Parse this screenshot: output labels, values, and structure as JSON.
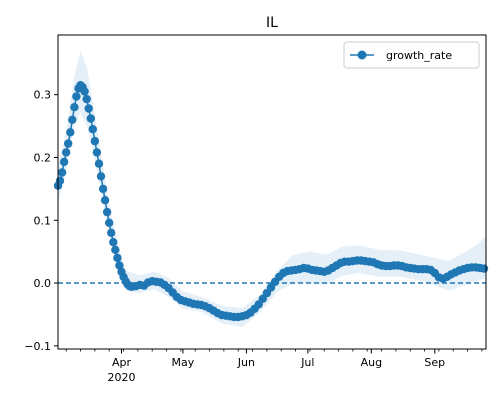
{
  "chart_data": {
    "type": "line",
    "title": "IL",
    "xlabel": "",
    "ylabel": "",
    "x_tick_labels": [
      "Apr",
      "May",
      "Jun",
      "Jul",
      "Aug",
      "Sep"
    ],
    "x_tick_dates": [
      "2020-04-01",
      "2020-05-01",
      "2020-06-01",
      "2020-07-01",
      "2020-08-01",
      "2020-09-01"
    ],
    "x_year_label": "2020",
    "xlim": [
      "2020-03-01",
      "2020-09-26"
    ],
    "y_ticks": [
      -0.1,
      0.0,
      0.1,
      0.2,
      0.3
    ],
    "y_tick_labels": [
      "−0.1",
      "0.0",
      "0.1",
      "0.2",
      "0.3"
    ],
    "ylim": [
      -0.105,
      0.395
    ],
    "legend": {
      "position": "top-right",
      "entries": [
        "growth_rate"
      ]
    },
    "reference_line": {
      "y": 0.0,
      "style": "dashed",
      "color": "#1f77b4"
    },
    "series_color": "#1f77b4",
    "band_color": "#cfe2f3",
    "grid": false,
    "series": [
      {
        "name": "growth_rate",
        "points": [
          [
            "2020-03-01",
            0.155
          ],
          [
            "2020-03-02",
            0.163
          ],
          [
            "2020-03-03",
            0.176
          ],
          [
            "2020-03-04",
            0.193
          ],
          [
            "2020-03-05",
            0.208
          ],
          [
            "2020-03-06",
            0.222
          ],
          [
            "2020-03-07",
            0.24
          ],
          [
            "2020-03-08",
            0.26
          ],
          [
            "2020-03-09",
            0.28
          ],
          [
            "2020-03-10",
            0.297
          ],
          [
            "2020-03-11",
            0.31
          ],
          [
            "2020-03-12",
            0.315
          ],
          [
            "2020-03-13",
            0.312
          ],
          [
            "2020-03-14",
            0.305
          ],
          [
            "2020-03-15",
            0.293
          ],
          [
            "2020-03-16",
            0.278
          ],
          [
            "2020-03-17",
            0.262
          ],
          [
            "2020-03-18",
            0.245
          ],
          [
            "2020-03-19",
            0.226
          ],
          [
            "2020-03-20",
            0.208
          ],
          [
            "2020-03-21",
            0.19
          ],
          [
            "2020-03-22",
            0.17
          ],
          [
            "2020-03-23",
            0.15
          ],
          [
            "2020-03-24",
            0.132
          ],
          [
            "2020-03-25",
            0.113
          ],
          [
            "2020-03-26",
            0.096
          ],
          [
            "2020-03-27",
            0.08
          ],
          [
            "2020-03-28",
            0.065
          ],
          [
            "2020-03-29",
            0.053
          ],
          [
            "2020-03-30",
            0.04
          ],
          [
            "2020-03-31",
            0.028
          ],
          [
            "2020-04-01",
            0.018
          ],
          [
            "2020-04-02",
            0.01
          ],
          [
            "2020-04-03",
            0.003
          ],
          [
            "2020-04-04",
            -0.002
          ],
          [
            "2020-04-05",
            -0.005
          ],
          [
            "2020-04-06",
            -0.006
          ],
          [
            "2020-04-08",
            -0.005
          ],
          [
            "2020-04-10",
            -0.003
          ],
          [
            "2020-04-12",
            -0.004
          ],
          [
            "2020-04-14",
            0.001
          ],
          [
            "2020-04-16",
            0.003
          ],
          [
            "2020-04-18",
            0.002
          ],
          [
            "2020-04-20",
            0.001
          ],
          [
            "2020-04-22",
            -0.003
          ],
          [
            "2020-04-24",
            -0.008
          ],
          [
            "2020-04-26",
            -0.015
          ],
          [
            "2020-04-28",
            -0.022
          ],
          [
            "2020-04-30",
            -0.027
          ],
          [
            "2020-05-02",
            -0.029
          ],
          [
            "2020-05-04",
            -0.031
          ],
          [
            "2020-05-06",
            -0.033
          ],
          [
            "2020-05-08",
            -0.034
          ],
          [
            "2020-05-10",
            -0.035
          ],
          [
            "2020-05-12",
            -0.037
          ],
          [
            "2020-05-14",
            -0.04
          ],
          [
            "2020-05-16",
            -0.044
          ],
          [
            "2020-05-18",
            -0.048
          ],
          [
            "2020-05-20",
            -0.051
          ],
          [
            "2020-05-22",
            -0.052
          ],
          [
            "2020-05-24",
            -0.053
          ],
          [
            "2020-05-26",
            -0.054
          ],
          [
            "2020-05-28",
            -0.054
          ],
          [
            "2020-05-30",
            -0.053
          ],
          [
            "2020-06-01",
            -0.051
          ],
          [
            "2020-06-03",
            -0.047
          ],
          [
            "2020-06-05",
            -0.041
          ],
          [
            "2020-06-07",
            -0.034
          ],
          [
            "2020-06-09",
            -0.025
          ],
          [
            "2020-06-11",
            -0.016
          ],
          [
            "2020-06-13",
            -0.007
          ],
          [
            "2020-06-15",
            0.002
          ],
          [
            "2020-06-17",
            0.01
          ],
          [
            "2020-06-19",
            0.016
          ],
          [
            "2020-06-21",
            0.019
          ],
          [
            "2020-06-23",
            0.02
          ],
          [
            "2020-06-25",
            0.021
          ],
          [
            "2020-06-27",
            0.022
          ],
          [
            "2020-06-29",
            0.024
          ],
          [
            "2020-07-01",
            0.023
          ],
          [
            "2020-07-03",
            0.021
          ],
          [
            "2020-07-05",
            0.02
          ],
          [
            "2020-07-07",
            0.019
          ],
          [
            "2020-07-09",
            0.018
          ],
          [
            "2020-07-11",
            0.02
          ],
          [
            "2020-07-13",
            0.024
          ],
          [
            "2020-07-15",
            0.028
          ],
          [
            "2020-07-17",
            0.032
          ],
          [
            "2020-07-19",
            0.034
          ],
          [
            "2020-07-21",
            0.034
          ],
          [
            "2020-07-23",
            0.035
          ],
          [
            "2020-07-25",
            0.036
          ],
          [
            "2020-07-27",
            0.036
          ],
          [
            "2020-07-29",
            0.035
          ],
          [
            "2020-07-31",
            0.034
          ],
          [
            "2020-08-02",
            0.033
          ],
          [
            "2020-08-04",
            0.03
          ],
          [
            "2020-08-06",
            0.028
          ],
          [
            "2020-08-08",
            0.027
          ],
          [
            "2020-08-10",
            0.027
          ],
          [
            "2020-08-12",
            0.028
          ],
          [
            "2020-08-14",
            0.028
          ],
          [
            "2020-08-16",
            0.027
          ],
          [
            "2020-08-18",
            0.025
          ],
          [
            "2020-08-20",
            0.024
          ],
          [
            "2020-08-22",
            0.023
          ],
          [
            "2020-08-24",
            0.022
          ],
          [
            "2020-08-26",
            0.022
          ],
          [
            "2020-08-28",
            0.022
          ],
          [
            "2020-08-30",
            0.021
          ],
          [
            "2020-09-01",
            0.016
          ],
          [
            "2020-09-03",
            0.009
          ],
          [
            "2020-09-05",
            0.007
          ],
          [
            "2020-09-07",
            0.01
          ],
          [
            "2020-09-09",
            0.014
          ],
          [
            "2020-09-11",
            0.017
          ],
          [
            "2020-09-13",
            0.02
          ],
          [
            "2020-09-15",
            0.022
          ],
          [
            "2020-09-17",
            0.024
          ],
          [
            "2020-09-19",
            0.025
          ],
          [
            "2020-09-21",
            0.025
          ],
          [
            "2020-09-23",
            0.024
          ],
          [
            "2020-09-25",
            0.023
          ]
        ],
        "band_upper": [
          [
            "2020-03-01",
            0.185
          ],
          [
            "2020-03-05",
            0.24
          ],
          [
            "2020-03-09",
            0.33
          ],
          [
            "2020-03-12",
            0.37
          ],
          [
            "2020-03-15",
            0.345
          ],
          [
            "2020-03-18",
            0.29
          ],
          [
            "2020-03-22",
            0.205
          ],
          [
            "2020-03-26",
            0.125
          ],
          [
            "2020-03-30",
            0.065
          ],
          [
            "2020-04-03",
            0.02
          ],
          [
            "2020-04-10",
            0.012
          ],
          [
            "2020-04-17",
            0.018
          ],
          [
            "2020-04-24",
            0.008
          ],
          [
            "2020-05-01",
            -0.013
          ],
          [
            "2020-05-10",
            -0.022
          ],
          [
            "2020-05-20",
            -0.036
          ],
          [
            "2020-05-30",
            -0.04
          ],
          [
            "2020-06-08",
            -0.018
          ],
          [
            "2020-06-16",
            0.02
          ],
          [
            "2020-06-24",
            0.045
          ],
          [
            "2020-07-02",
            0.05
          ],
          [
            "2020-07-10",
            0.045
          ],
          [
            "2020-07-18",
            0.058
          ],
          [
            "2020-07-26",
            0.06
          ],
          [
            "2020-08-05",
            0.053
          ],
          [
            "2020-08-15",
            0.052
          ],
          [
            "2020-08-25",
            0.045
          ],
          [
            "2020-09-01",
            0.04
          ],
          [
            "2020-09-08",
            0.035
          ],
          [
            "2020-09-15",
            0.048
          ],
          [
            "2020-09-22",
            0.062
          ],
          [
            "2020-09-26",
            0.075
          ]
        ],
        "band_lower": [
          [
            "2020-03-01",
            0.125
          ],
          [
            "2020-03-05",
            0.178
          ],
          [
            "2020-03-09",
            0.252
          ],
          [
            "2020-03-12",
            0.272
          ],
          [
            "2020-03-15",
            0.25
          ],
          [
            "2020-03-18",
            0.212
          ],
          [
            "2020-03-22",
            0.145
          ],
          [
            "2020-03-26",
            0.078
          ],
          [
            "2020-03-30",
            0.028
          ],
          [
            "2020-04-03",
            -0.012
          ],
          [
            "2020-04-10",
            -0.016
          ],
          [
            "2020-04-17",
            -0.01
          ],
          [
            "2020-04-24",
            -0.022
          ],
          [
            "2020-05-01",
            -0.04
          ],
          [
            "2020-05-10",
            -0.046
          ],
          [
            "2020-05-20",
            -0.064
          ],
          [
            "2020-05-30",
            -0.07
          ],
          [
            "2020-06-08",
            -0.046
          ],
          [
            "2020-06-16",
            -0.014
          ],
          [
            "2020-06-24",
            0.0
          ],
          [
            "2020-07-02",
            0.0
          ],
          [
            "2020-07-10",
            -0.002
          ],
          [
            "2020-07-18",
            0.012
          ],
          [
            "2020-07-26",
            0.016
          ],
          [
            "2020-08-05",
            0.01
          ],
          [
            "2020-08-15",
            0.01
          ],
          [
            "2020-08-25",
            0.004
          ],
          [
            "2020-09-01",
            -0.004
          ],
          [
            "2020-09-08",
            -0.012
          ],
          [
            "2020-09-15",
            -0.004
          ],
          [
            "2020-09-22",
            0.004
          ],
          [
            "2020-09-26",
            0.008
          ]
        ]
      }
    ]
  }
}
